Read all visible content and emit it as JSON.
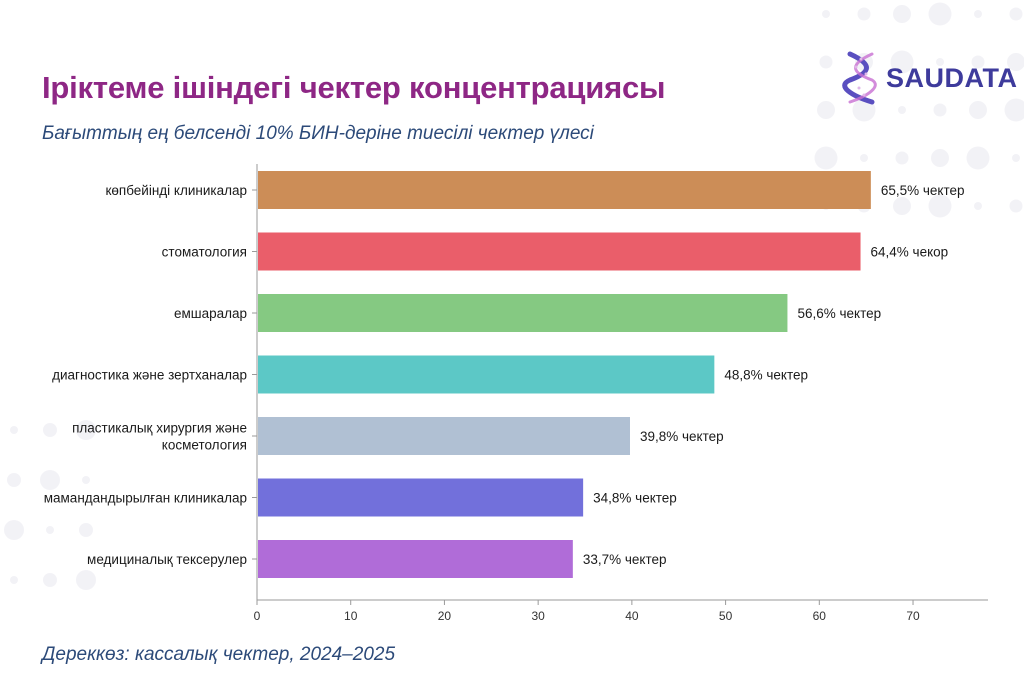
{
  "header": {
    "title": "Іріктеме ішіндегі чектер концентрациясы",
    "subtitle": "Бағыттың ең белсенді 10% БИН-деріне тиесілі чектер үлесі"
  },
  "logo": {
    "text": "SAUDATA",
    "icon": "dna-helix-icon"
  },
  "footer": {
    "source": "Дереккөз: кассалық чектер, 2024–2025"
  },
  "chart_data": {
    "type": "bar",
    "orientation": "horizontal",
    "title": "Іріктеме ішіндегі чектер концентрациясы",
    "subtitle": "Бағыттың ең белсенді 10% БИН-деріне тиесілі чектер үлесі",
    "categories": [
      "көпбейінді клиникалар",
      "стоматология",
      "емшаралар",
      "диагностика және зертханалар",
      "пластикалық хирургия және косметология",
      "мамандандырылған клиникалар",
      "медициналық тексерулер"
    ],
    "category_lines": [
      [
        "көпбейінді клиникалар"
      ],
      [
        "стоматология"
      ],
      [
        "емшаралар"
      ],
      [
        "диагностика және зертханалар"
      ],
      [
        "пластикалық хирургия және",
        "косметология"
      ],
      [
        "мамандандырылған клиникалар"
      ],
      [
        "медициналық тексерулер"
      ]
    ],
    "values": [
      65.5,
      64.4,
      56.6,
      48.8,
      39.8,
      34.8,
      33.7
    ],
    "value_labels": [
      "65,5% чектер",
      "64,4% чекор",
      "56,6% чектер",
      "48,8% чектер",
      "39,8% чектер",
      "34,8% чектер",
      "33,7% чектер"
    ],
    "colors": [
      "#cc8d57",
      "#ea5e6a",
      "#85c982",
      "#5cc8c6",
      "#b0c0d3",
      "#7270db",
      "#b06cd8"
    ],
    "xlim": [
      0,
      78
    ],
    "xticks": [
      0,
      10,
      20,
      30,
      40,
      50,
      60,
      70
    ],
    "grid": false
  }
}
